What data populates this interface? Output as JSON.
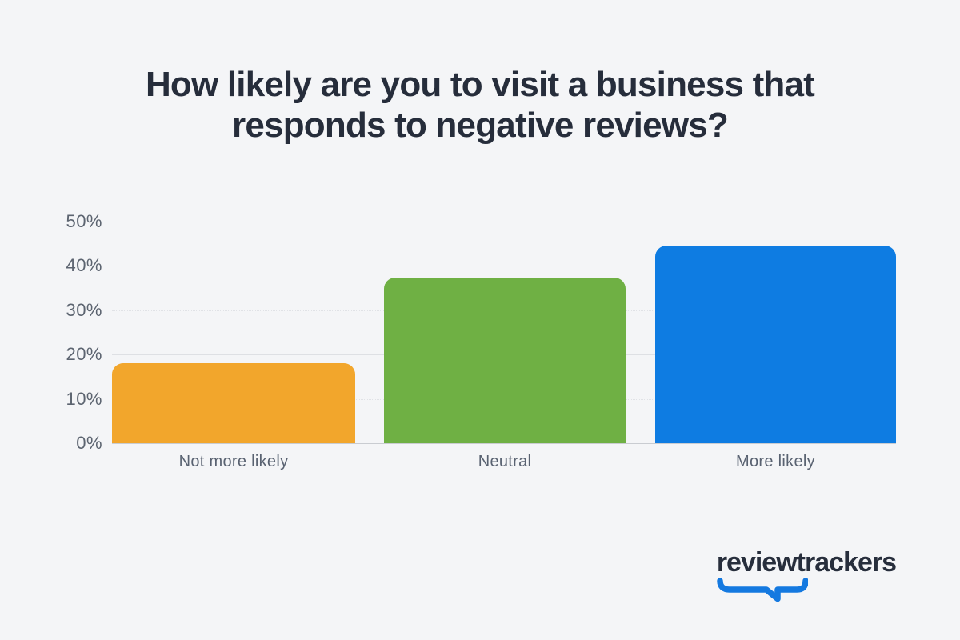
{
  "page": {
    "background": "#F4F5F7",
    "title_color": "#262D3B"
  },
  "header": {
    "title_lines": [
      "How likely are you to visit a business that",
      "responds to negative reviews?"
    ]
  },
  "chart_data": {
    "type": "bar",
    "title": "How likely are you to visit a business that responds to negative reviews?",
    "categories": [
      "Not more likely",
      "Neutral",
      "More likely"
    ],
    "values": [
      18.1,
      37.3,
      44.6
    ],
    "unit": "%",
    "colors": [
      "#F2A62C",
      "#6FB044",
      "#0E7CE2"
    ],
    "xlabel": "",
    "ylabel": "",
    "ylim": [
      0,
      50
    ],
    "yticks": [
      "50%",
      "40%",
      "30%",
      "20%",
      "10%",
      "0%"
    ],
    "grid": "horizontal",
    "legend": "none"
  },
  "branding": {
    "logo_text": "reviewtrackers",
    "brand_blue": "#1479E0",
    "logo_text_color": "#272E3C"
  }
}
